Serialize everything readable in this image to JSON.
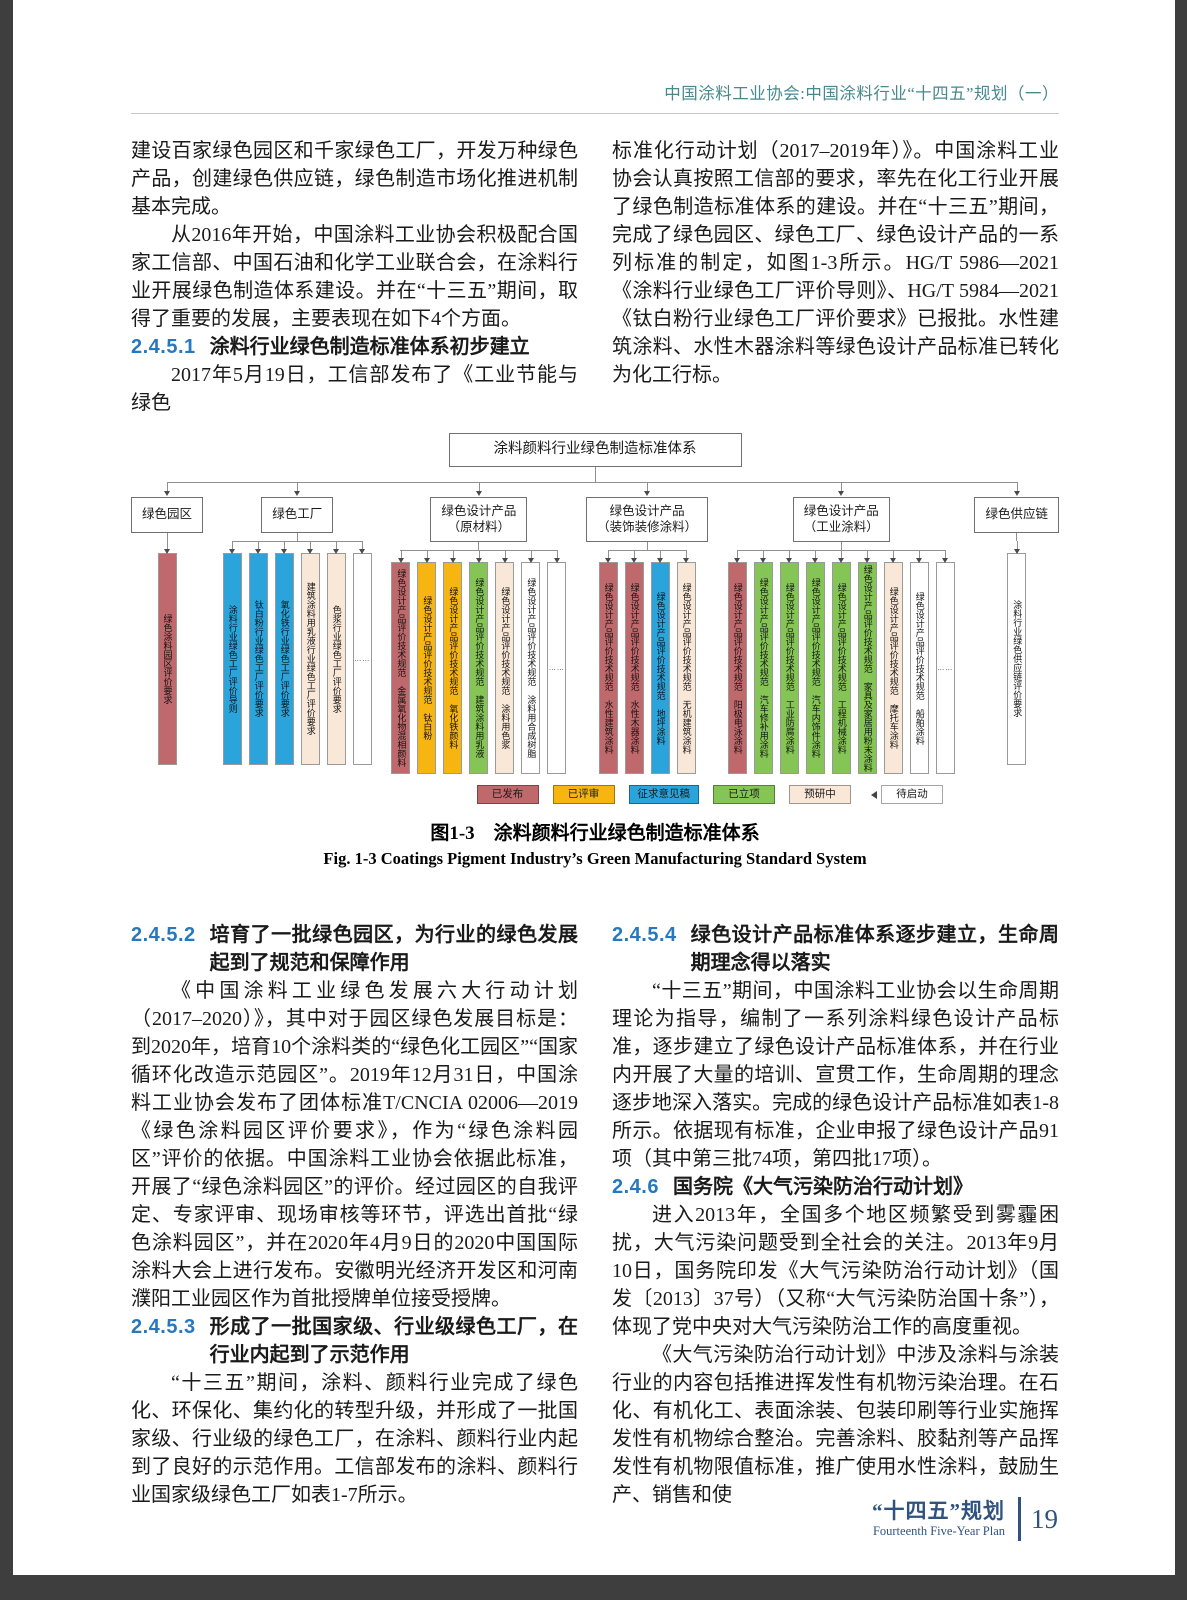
{
  "page_header": {
    "text": "中国涂料工业协会:中国涂料行业“十四五”规划（一）"
  },
  "columns_top": {
    "left": [
      {
        "type": "para",
        "indent": false,
        "text": "建设百家绿色园区和千家绿色工厂，开发万种绿色产品，创建绿色供应链，绿色制造市场化推进机制基本完成。"
      },
      {
        "type": "para",
        "indent": true,
        "text": "从2016年开始，中国涂料工业协会积极配合国家工信部、中国石油和化学工业联合会，在涂料行业开展绿色制造体系建设。并在“十三五”期间，取得了重要的发展，主要表现在如下4个方面。"
      },
      {
        "type": "heading",
        "num": "2.4.5.1",
        "text": "涂料行业绿色制造标准体系初步建立"
      },
      {
        "type": "para",
        "indent": true,
        "text": "2017年5月19日，工信部发布了《工业节能与绿色"
      }
    ],
    "right": [
      {
        "type": "para",
        "indent": false,
        "text": "标准化行动计划（2017–2019年）》。中国涂料工业协会认真按照工信部的要求，率先在化工行业开展了绿色制造标准体系的建设。并在“十三五”期间，完成了绿色园区、绿色工厂、绿色设计产品的一系列标准的制定，如图1-3所示。HG/T 5986—2021《涂料行业绿色工厂评价导则》、HG/T 5984—2021《钛白粉行业绿色工厂评价要求》已报批。水性建筑涂料、水性木器涂料等绿色设计产品标准已转化为化工行标。"
      }
    ]
  },
  "figure": {
    "root": "涂料颜料行业绿色制造标准体系",
    "status_colors": {
      "published": "#C0696C",
      "reviewed": "#F7B512",
      "draft": "#2AA4DB",
      "approved": "#85C556",
      "preresearch": "#F9E7D8",
      "pending": "#FFFFFF"
    },
    "groups": [
      {
        "label": [
          "绿色园区"
        ],
        "bars": [
          {
            "label": "绿色涂料园区评价要求",
            "status": "published"
          }
        ]
      },
      {
        "label": [
          "绿色工厂"
        ],
        "bars": [
          {
            "label": "涂料行业绿色工厂评价导则",
            "status": "draft"
          },
          {
            "label": "钛白粉行业绿色工厂评价要求",
            "status": "draft"
          },
          {
            "label": "氧化铁行业绿色工厂评价要求",
            "status": "draft"
          },
          {
            "label": "建筑涂料用乳液行业绿色工厂评价要求",
            "status": "preresearch"
          },
          {
            "label": "色浆行业绿色工厂评价要求",
            "status": "preresearch"
          },
          {
            "label": "……",
            "status": "pending",
            "dots": true
          }
        ]
      },
      {
        "label": [
          "绿色设计产品",
          "（原材料）"
        ],
        "bars": [
          {
            "label": "绿色设计产品评价技术规范　金属氧化物混相颜料",
            "status": "published"
          },
          {
            "label": "绿色设计产品评价技术规范　钛白粉",
            "status": "reviewed"
          },
          {
            "label": "绿色设计产品评价技术规范　氧化铁颜料",
            "status": "reviewed"
          },
          {
            "label": "绿色设计产品评价技术规范　建筑涂料用乳液",
            "status": "approved"
          },
          {
            "label": "绿色设计产品评价技术规范　涂料用色浆",
            "status": "preresearch"
          },
          {
            "label": "绿色设计产品评价技术规范　涂料用合成树脂",
            "status": "pending"
          },
          {
            "label": "……",
            "status": "pending",
            "dots": true
          }
        ]
      },
      {
        "label": [
          "绿色设计产品",
          "（装饰装修涂料）"
        ],
        "bars": [
          {
            "label": "绿色设计产品评价技术规范　水性建筑涂料",
            "status": "published"
          },
          {
            "label": "绿色设计产品评价技术规范　水性木器涂料",
            "status": "published"
          },
          {
            "label": "绿色设计产品评价技术规范　地坪涂料",
            "status": "draft"
          },
          {
            "label": "绿色设计产品评价技术规范　无机建筑涂料",
            "status": "preresearch"
          }
        ]
      },
      {
        "label": [
          "绿色设计产品",
          "（工业涂料）"
        ],
        "bars": [
          {
            "label": "绿色设计产品评价技术规范　阳极电泳涂料",
            "status": "published"
          },
          {
            "label": "绿色设计产品评价技术规范　汽车修补用涂料",
            "status": "approved"
          },
          {
            "label": "绿色设计产品评价技术规范　工业防腐涂料",
            "status": "approved"
          },
          {
            "label": "绿色设计产品评价技术规范　汽车内饰件涂料",
            "status": "approved"
          },
          {
            "label": "绿色设计产品评价技术规范　工程机械涂料",
            "status": "approved"
          },
          {
            "label": "绿色设计产品评价技术规范　家具及家居用粉末涂料",
            "status": "approved"
          },
          {
            "label": "绿色设计产品评价技术规范　摩托车涂料",
            "status": "preresearch"
          },
          {
            "label": "绿色设计产品评价技术规范　船舶涂料",
            "status": "pending"
          },
          {
            "label": "……",
            "status": "pending",
            "dots": true
          }
        ]
      },
      {
        "label": [
          "绿色供应链"
        ],
        "bars": [
          {
            "label": "涂料行业绿色供应链评价要求",
            "status": "pending"
          }
        ]
      }
    ],
    "legend": [
      {
        "label": "已发布",
        "status": "published"
      },
      {
        "label": "已评审",
        "status": "reviewed"
      },
      {
        "label": "征求意见稿",
        "status": "draft"
      },
      {
        "label": "已立项",
        "status": "approved"
      },
      {
        "label": "预研中",
        "status": "preresearch"
      },
      {
        "label": "待启动",
        "status": "pending"
      }
    ],
    "caption_cn": "图1-3　涂料颜料行业绿色制造标准体系",
    "caption_en": "Fig. 1-3  Coatings Pigment Industry’s Green Manufacturing Standard System"
  },
  "columns_bottom": {
    "left": [
      {
        "type": "heading",
        "num": "2.4.5.2",
        "text": "培育了一批绿色园区，为行业的绿色发展起到了规范和保障作用"
      },
      {
        "type": "para",
        "indent": true,
        "text": "《中国涂料工业绿色发展六大行动计划（2017–2020）》，其中对于园区绿色发展目标是：到2020年，培育10个涂料类的“绿色化工园区”“国家循环化改造示范园区”。2019年12月31日，中国涂料工业协会发布了团体标准T/CNCIA 02006—2019《绿色涂料园区评价要求》，作为“绿色涂料园区”评价的依据。中国涂料工业协会依据此标准，开展了“绿色涂料园区”的评价。经过园区的自我评定、专家评审、现场审核等环节，评选出首批“绿色涂料园区”，并在2020年4月9日的2020中国国际涂料大会上进行发布。安徽明光经济开发区和河南濮阳工业园区作为首批授牌单位接受授牌。"
      },
      {
        "type": "heading",
        "num": "2.4.5.3",
        "text": "形成了一批国家级、行业级绿色工厂，在行业内起到了示范作用"
      },
      {
        "type": "para",
        "indent": true,
        "text": "“十三五”期间，涂料、颜料行业完成了绿色化、环保化、集约化的转型升级，并形成了一批国家级、行业级的绿色工厂，在涂料、颜料行业内起到了良好的示范作用。工信部发布的涂料、颜料行业国家级绿色工厂如表1-7所示。"
      }
    ],
    "right": [
      {
        "type": "heading",
        "num": "2.4.5.4",
        "text": "绿色设计产品标准体系逐步建立，生命周期理念得以落实"
      },
      {
        "type": "para",
        "indent": true,
        "text": "“十三五”期间，中国涂料工业协会以生命周期理论为指导，编制了一系列涂料绿色设计产品标准，逐步建立了绿色设计产品标准体系，并在行业内开展了大量的培训、宣贯工作，生命周期的理念逐步地深入落实。完成的绿色设计产品标准如表1-8所示。依据现有标准，企业申报了绿色设计产品91项（其中第三批74项，第四批17项）。"
      },
      {
        "type": "heading",
        "num": "2.4.6",
        "text": "国务院《大气污染防治行动计划》"
      },
      {
        "type": "para",
        "indent": true,
        "text": "进入2013年，全国多个地区频繁受到雾霾困扰，大气污染问题受到全社会的关注。2013年9月10日，国务院印发《大气污染防治行动计划》（国发〔2013〕37号）（又称“大气污染防治国十条”），体现了党中央对大气污染防治工作的高度重视。"
      },
      {
        "type": "para",
        "indent": true,
        "text": "《大气污染防治行动计划》中涉及涂料与涂装行业的内容包括推进挥发性有机物污染治理。在石化、有机化工、表面涂装、包装印刷等行业实施挥发性有机物综合整治。完善涂料、胶黏剂等产品挥发性有机物限值标准，推广使用水性涂料，鼓励生产、销售和使"
      }
    ]
  },
  "footer": {
    "plan_cn": "“十四五”规划",
    "plan_en": "Fourteenth Five-Year Plan",
    "page_num": "19"
  }
}
